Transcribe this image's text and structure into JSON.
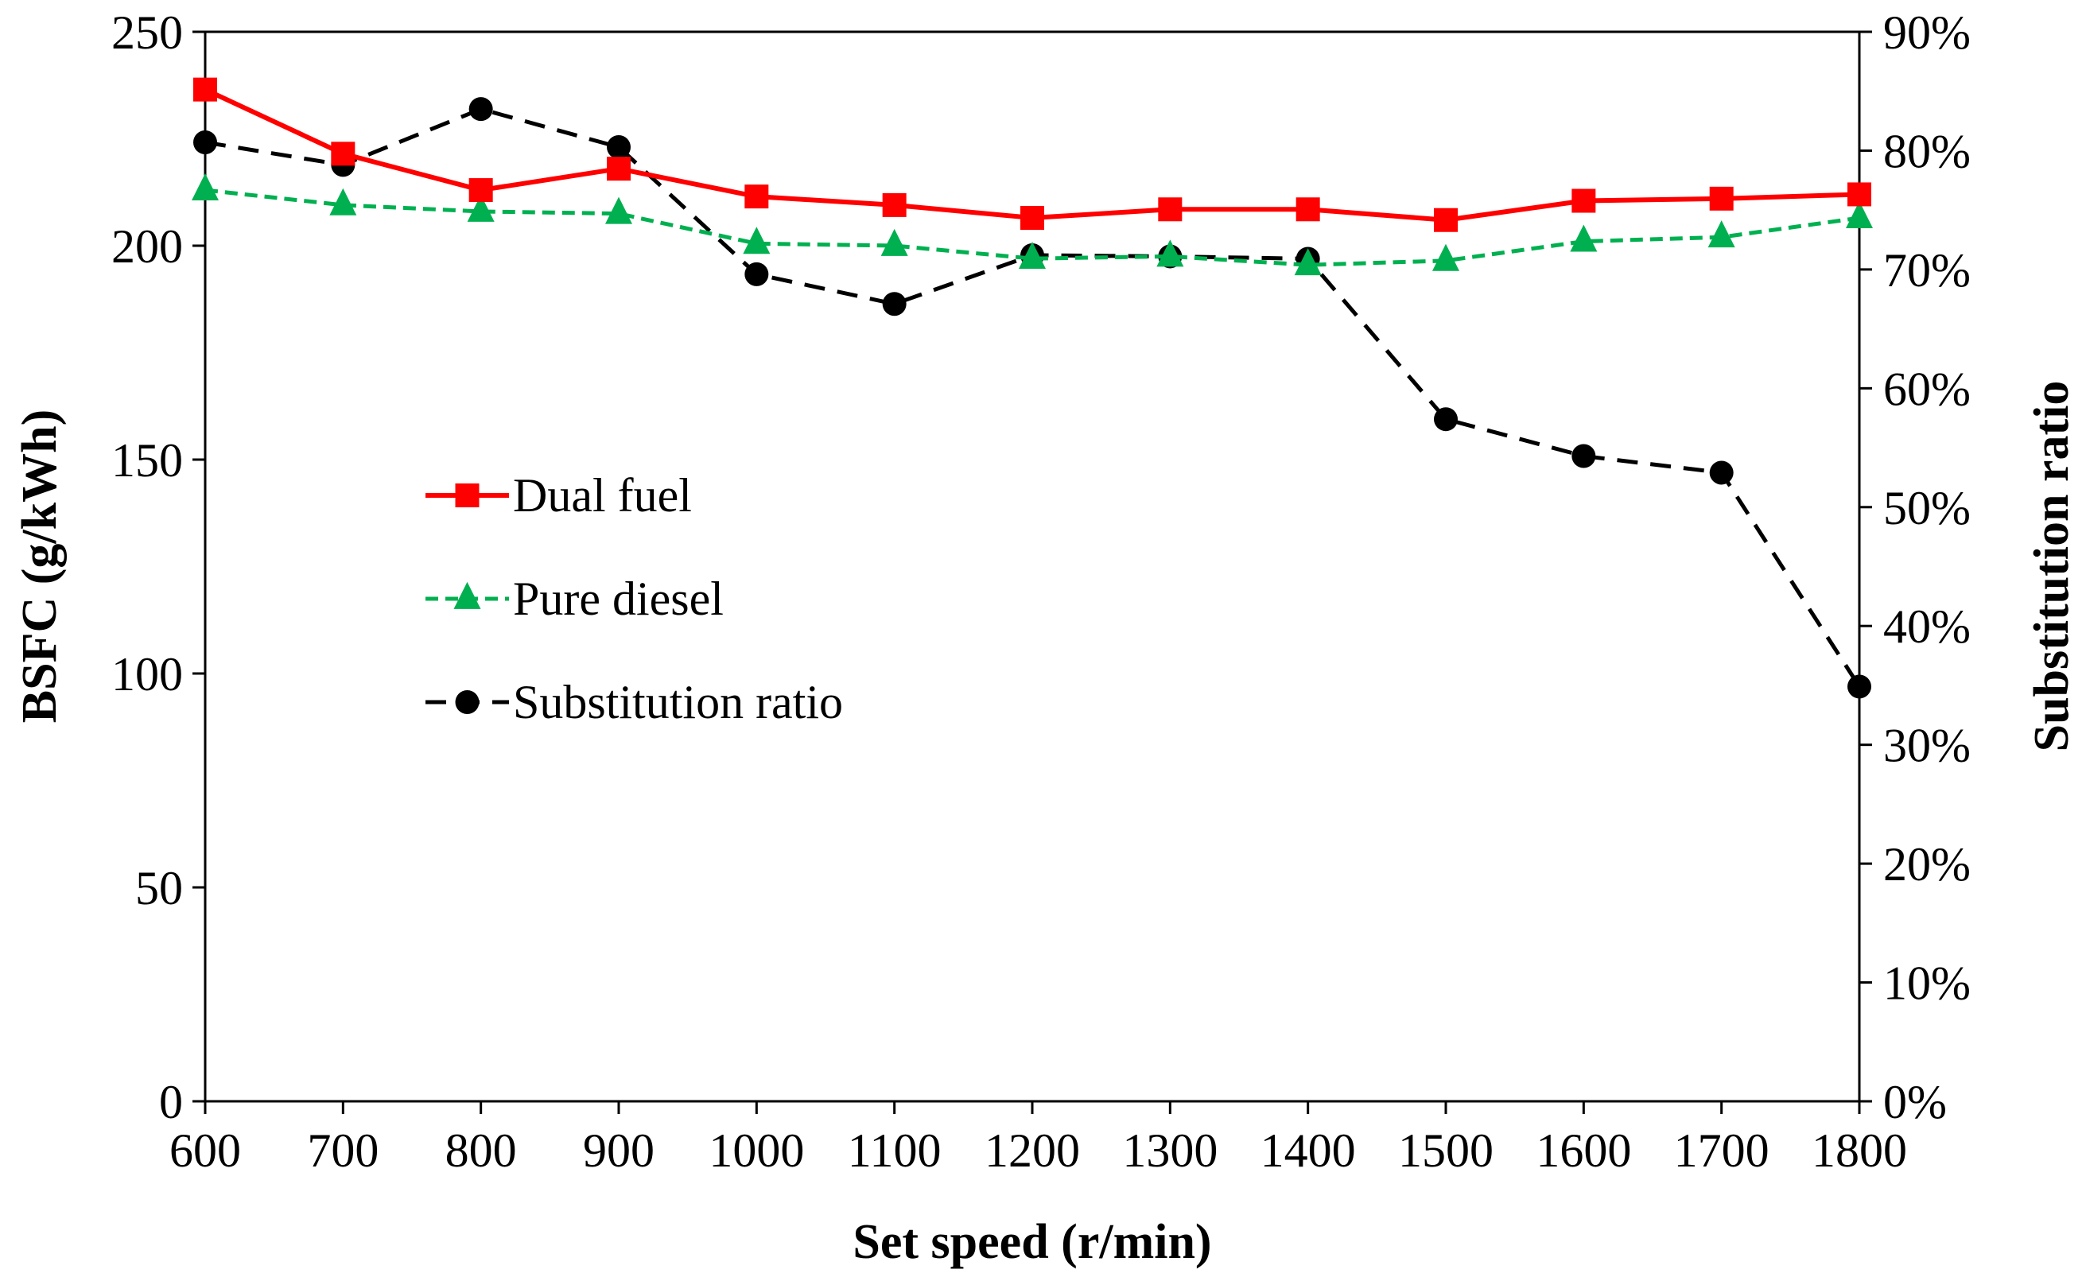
{
  "chart_data": {
    "type": "line",
    "x": [
      600,
      700,
      800,
      900,
      1000,
      1100,
      1200,
      1300,
      1400,
      1500,
      1600,
      1700,
      1800
    ],
    "xlabel": "Set speed (r/min)",
    "ylabel": "BSFC (g/kWh)",
    "y2label": "Substitution ratio",
    "xlim": [
      600,
      1800
    ],
    "ylim": [
      0,
      250
    ],
    "y2lim": [
      0,
      90
    ],
    "xticks": [
      "600",
      "700",
      "800",
      "900",
      "1000",
      "1100",
      "1200",
      "1300",
      "1400",
      "1500",
      "1600",
      "1700",
      "1800"
    ],
    "yticks": [
      "0",
      "50",
      "100",
      "150",
      "200",
      "250"
    ],
    "y2ticks": [
      "0%",
      "10%",
      "20%",
      "30%",
      "40%",
      "50%",
      "60%",
      "70%",
      "80%",
      "90%"
    ],
    "legend_position": "center-left",
    "series": [
      {
        "name": "Dual fuel",
        "axis": "left",
        "marker": "square",
        "line": "solid",
        "color": "#ff0000",
        "values": [
          236.5,
          221.5,
          213,
          218,
          211.5,
          209.5,
          206.5,
          208.5,
          208.5,
          206,
          210.5,
          211,
          212
        ]
      },
      {
        "name": "Pure diesel",
        "axis": "left",
        "marker": "triangle",
        "line": "dashed",
        "color": "#00b050",
        "values": [
          213,
          209.5,
          208,
          207.5,
          200.5,
          200,
          197,
          197.5,
          195.5,
          196.5,
          201,
          202,
          206.5
        ]
      },
      {
        "name": "Substitution ratio",
        "axis": "right",
        "marker": "circle",
        "line": "dashed",
        "color": "#000000",
        "values": [
          80.7,
          78.8,
          83.5,
          80.3,
          69.6,
          67.1,
          71.2,
          71.1,
          70.9,
          57.4,
          54.3,
          52.9,
          34.9
        ]
      }
    ]
  }
}
